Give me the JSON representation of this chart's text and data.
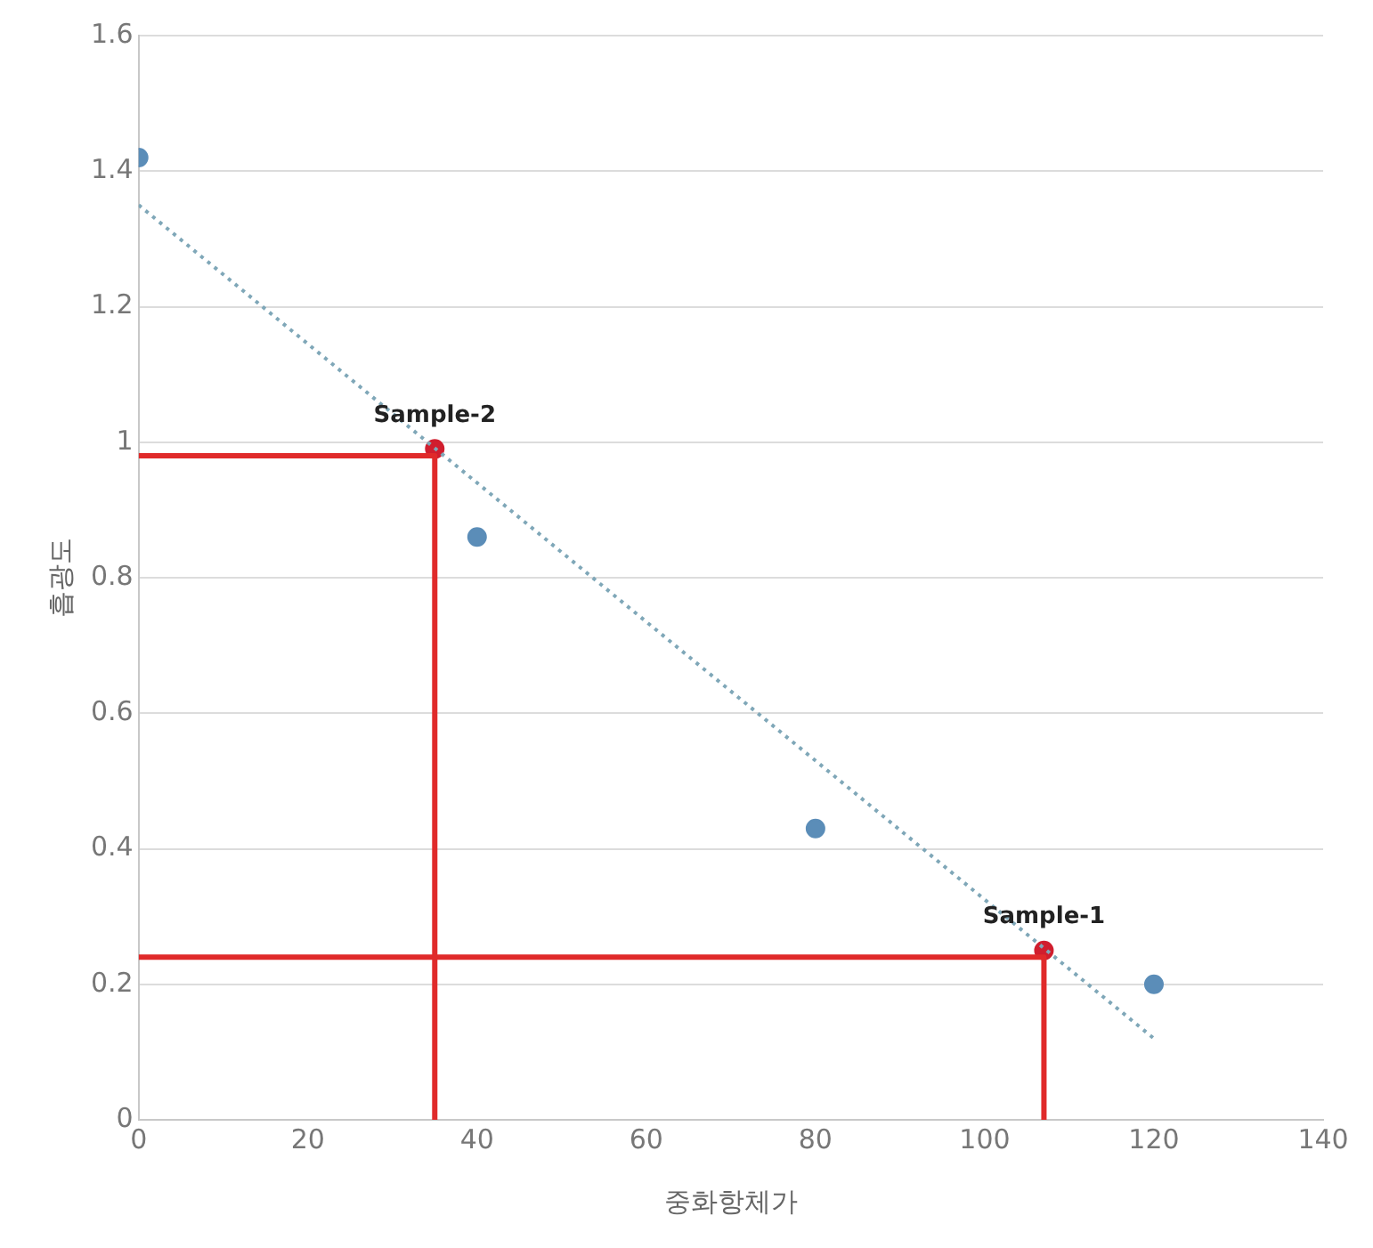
{
  "chart_data": {
    "type": "scatter",
    "xlabel": "중화항체가",
    "ylabel": "흡광도",
    "xlim": [
      0,
      140
    ],
    "xticks": [
      0,
      20,
      40,
      60,
      80,
      100,
      120,
      140
    ],
    "ylim": [
      0,
      1.6
    ],
    "yticks": [
      0,
      0.2,
      0.4,
      0.6,
      0.8,
      1,
      1.2,
      1.4,
      1.6
    ],
    "grid": "y",
    "series": [
      {
        "type": "scatter",
        "color": "#5b8db8",
        "marker": "circle",
        "x": [
          0,
          40,
          80,
          120
        ],
        "values": [
          1.42,
          0.86,
          0.43,
          0.2
        ]
      },
      {
        "type": "line",
        "color": "#7fa7b8",
        "marker": "none",
        "line_style": "dotted",
        "x": [
          0,
          120
        ],
        "values": [
          1.35,
          0.12
        ]
      },
      {
        "type": "line",
        "color": "#e02a2a",
        "marker": "none",
        "line_style": "solid",
        "x": [
          0,
          35,
          35
        ],
        "values": [
          0.98,
          0.98,
          0
        ]
      },
      {
        "type": "line",
        "color": "#e02a2a",
        "marker": "none",
        "line_style": "solid",
        "x": [
          0,
          107,
          107
        ],
        "values": [
          0.24,
          0.24,
          0
        ]
      },
      {
        "type": "scatter",
        "color": "#d01e2e",
        "marker": "circle",
        "x": [
          35,
          107
        ],
        "values": [
          0.99,
          0.25
        ]
      }
    ],
    "annotations": [
      {
        "text": "Sample-2",
        "x": 35,
        "y": 0.99
      },
      {
        "text": "Sample-1",
        "x": 107,
        "y": 0.25
      }
    ]
  }
}
